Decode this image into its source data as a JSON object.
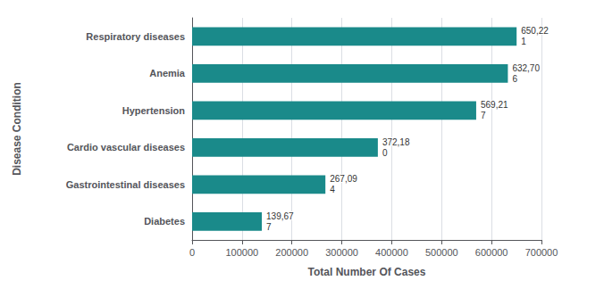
{
  "chart_data": {
    "type": "bar",
    "orientation": "horizontal",
    "categories": [
      "Respiratory diseases",
      "Anemia",
      "Hypertension",
      "Cardio vascular diseases",
      "Gastrointestinal diseases",
      "Diabetes"
    ],
    "values": [
      650221,
      632706,
      569217,
      372180,
      267094,
      139677
    ],
    "value_labels": [
      "650,22\n1",
      "632,70\n6",
      "569,21\n7",
      "372,18\n0",
      "267,09\n4",
      "139,67\n7"
    ],
    "data_labels": true,
    "color": "#1a8a8a",
    "xlabel": "Total Number Of Cases",
    "ylabel": "Disease Condition",
    "xlim": [
      0,
      700000
    ],
    "xticks": [
      0,
      100000,
      200000,
      300000,
      400000,
      500000,
      600000,
      700000
    ],
    "grid": true
  }
}
